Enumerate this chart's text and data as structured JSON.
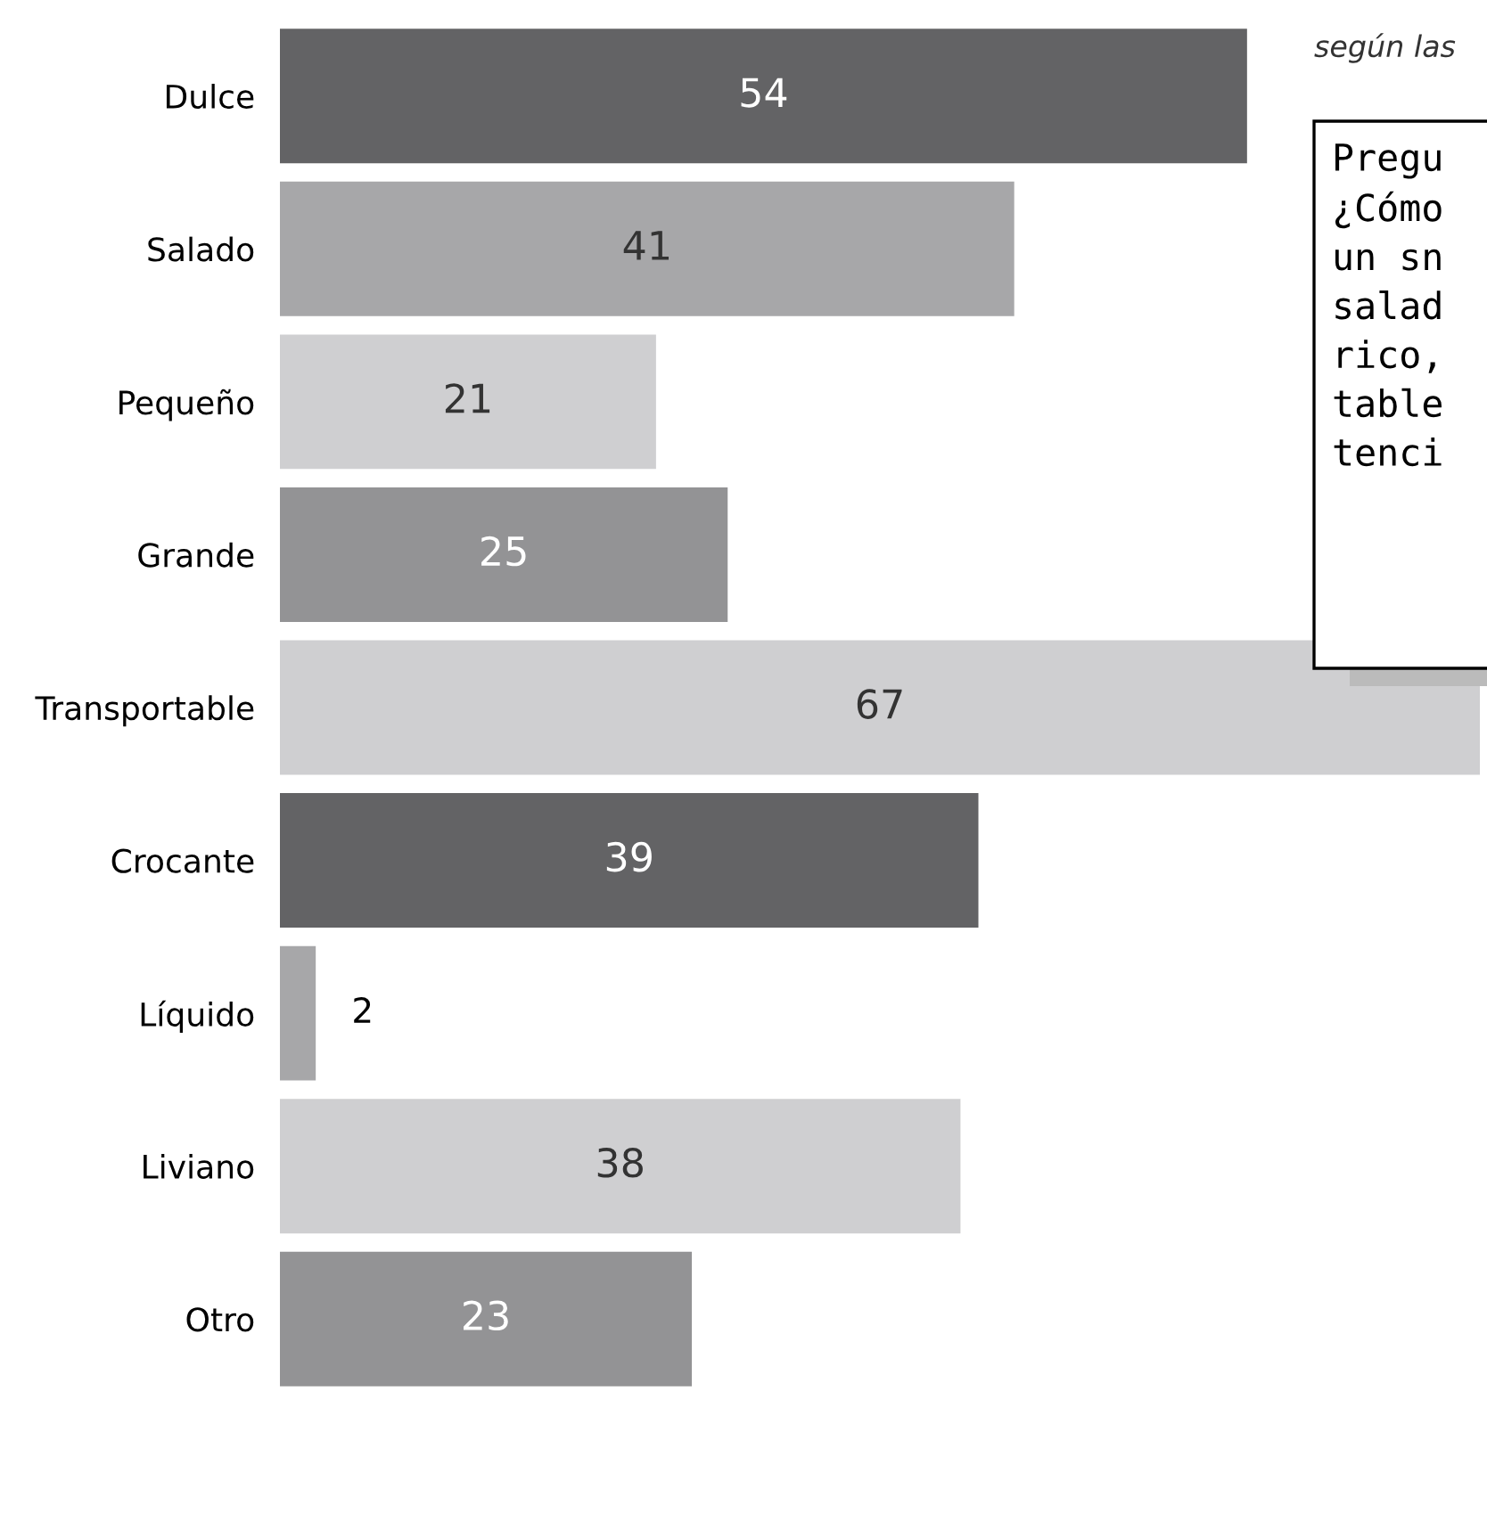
{
  "chart_data": {
    "type": "bar",
    "orientation": "horizontal",
    "categories": [
      "Dulce",
      "Salado",
      "Pequeño",
      "Grande",
      "Transportable",
      "Crocante",
      "Líquido",
      "Liviano",
      "Otro"
    ],
    "values": [
      54,
      41,
      21,
      25,
      67,
      39,
      2,
      38,
      23
    ],
    "colors": [
      "#636365",
      "#a7a7a9",
      "#cfcfd1",
      "#939395",
      "#cfcfd1",
      "#636365",
      "#a7a7a9",
      "#cfcfd1",
      "#939395"
    ],
    "data_labels": true,
    "grid": false,
    "legend": false,
    "annotations": [
      "según las",
      "Pregu\n¿Cómo\nun sn\nsalad\nrico,\ntable\ntenci"
    ]
  }
}
